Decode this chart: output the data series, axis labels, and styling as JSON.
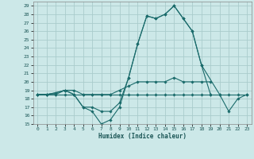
{
  "xlabel": "Humidex (Indice chaleur)",
  "background_color": "#cce8e8",
  "grid_color": "#aacccc",
  "line_color": "#1a6b6b",
  "xlim": [
    -0.5,
    23.5
  ],
  "ylim": [
    15,
    29.5
  ],
  "yticks": [
    15,
    16,
    17,
    18,
    19,
    20,
    21,
    22,
    23,
    24,
    25,
    26,
    27,
    28,
    29
  ],
  "xticks": [
    0,
    1,
    2,
    3,
    4,
    5,
    6,
    7,
    8,
    9,
    10,
    11,
    12,
    13,
    14,
    15,
    16,
    17,
    18,
    19,
    20,
    21,
    22,
    23
  ],
  "series": [
    {
      "x": [
        0,
        1,
        2,
        3,
        4,
        5,
        6,
        7,
        8,
        9,
        10,
        11,
        12,
        13,
        14,
        15,
        16,
        17,
        18,
        20,
        21,
        22,
        23
      ],
      "y": [
        18.5,
        18.5,
        18.7,
        19.0,
        18.5,
        17.0,
        16.5,
        15.0,
        15.5,
        17.0,
        20.5,
        24.5,
        27.8,
        27.5,
        28.0,
        29.0,
        27.5,
        26.0,
        22.0,
        18.5,
        16.5,
        18.0,
        18.5
      ]
    },
    {
      "x": [
        0,
        1,
        2,
        3,
        4,
        5,
        6,
        7,
        8,
        9,
        10,
        11,
        12,
        13,
        14,
        15,
        16,
        17,
        18,
        19
      ],
      "y": [
        18.5,
        18.5,
        18.7,
        19.0,
        18.5,
        17.0,
        17.0,
        16.5,
        16.5,
        17.5,
        20.5,
        24.5,
        27.8,
        27.5,
        28.0,
        29.0,
        27.5,
        26.0,
        22.0,
        18.5
      ]
    },
    {
      "x": [
        0,
        1,
        2,
        3,
        4,
        5,
        6,
        7,
        8,
        9,
        10,
        11,
        12,
        13,
        14,
        15,
        16,
        17,
        18,
        19
      ],
      "y": [
        18.5,
        18.5,
        18.5,
        19.0,
        19.0,
        18.5,
        18.5,
        18.5,
        18.5,
        19.0,
        19.5,
        20.0,
        20.0,
        20.0,
        20.0,
        20.5,
        20.0,
        20.0,
        20.0,
        20.0
      ]
    },
    {
      "x": [
        0,
        1,
        2,
        3,
        4,
        5,
        6,
        7,
        8,
        9,
        10,
        11,
        12,
        13,
        14,
        15,
        16,
        17,
        18,
        19,
        20,
        21,
        22,
        23
      ],
      "y": [
        18.5,
        18.5,
        18.5,
        18.5,
        18.5,
        18.5,
        18.5,
        18.5,
        18.5,
        18.5,
        18.5,
        18.5,
        18.5,
        18.5,
        18.5,
        18.5,
        18.5,
        18.5,
        18.5,
        18.5,
        18.5,
        18.5,
        18.5,
        18.5
      ]
    }
  ]
}
